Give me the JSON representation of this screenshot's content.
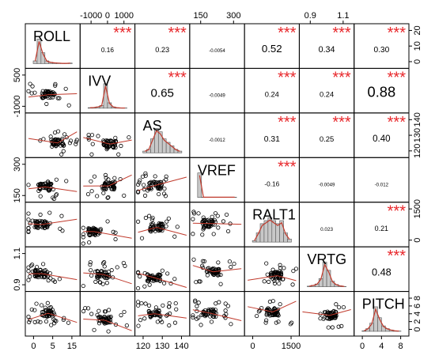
{
  "chart_data": {
    "type": "scatter",
    "variables": [
      "ROLL",
      "IVV",
      "AS",
      "VREF",
      "RALT1",
      "VRTG",
      "PITCH"
    ],
    "correlations": [
      {
        "row": 0,
        "col": 1,
        "value": "0.16",
        "stars": "***"
      },
      {
        "row": 0,
        "col": 2,
        "value": "0.23",
        "stars": "***"
      },
      {
        "row": 0,
        "col": 3,
        "value": "-0.0054",
        "stars": ""
      },
      {
        "row": 0,
        "col": 4,
        "value": "0.52",
        "stars": "***"
      },
      {
        "row": 0,
        "col": 5,
        "value": "0.34",
        "stars": "***"
      },
      {
        "row": 0,
        "col": 6,
        "value": "0.30",
        "stars": "***"
      },
      {
        "row": 1,
        "col": 2,
        "value": "0.65",
        "stars": "***"
      },
      {
        "row": 1,
        "col": 3,
        "value": "-0.0049",
        "stars": ""
      },
      {
        "row": 1,
        "col": 4,
        "value": "0.24",
        "stars": "***"
      },
      {
        "row": 1,
        "col": 5,
        "value": "0.24",
        "stars": "***"
      },
      {
        "row": 1,
        "col": 6,
        "value": "0.88",
        "stars": "***"
      },
      {
        "row": 2,
        "col": 3,
        "value": "-0.0012",
        "stars": ""
      },
      {
        "row": 2,
        "col": 4,
        "value": "0.31",
        "stars": "***"
      },
      {
        "row": 2,
        "col": 5,
        "value": "0.25",
        "stars": "***"
      },
      {
        "row": 2,
        "col": 6,
        "value": "0.40",
        "stars": "***"
      },
      {
        "row": 3,
        "col": 4,
        "value": "-0.16",
        "stars": "***"
      },
      {
        "row": 3,
        "col": 5,
        "value": "-0.0049",
        "stars": ""
      },
      {
        "row": 3,
        "col": 6,
        "value": "-0.012",
        "stars": ""
      },
      {
        "row": 4,
        "col": 5,
        "value": "0.023",
        "stars": ""
      },
      {
        "row": 4,
        "col": 6,
        "value": "0.21",
        "stars": "***"
      },
      {
        "row": 5,
        "col": 6,
        "value": "0.48",
        "stars": "***"
      }
    ],
    "axes": {
      "top": [
        {
          "col": 1,
          "ticks": [
            "-1000",
            "0",
            "1000"
          ]
        },
        {
          "col": 3,
          "ticks": [
            "150",
            "300"
          ]
        },
        {
          "col": 5,
          "ticks": [
            "0.9",
            "1.1"
          ]
        }
      ],
      "right": [
        {
          "row": 0,
          "ticks": [
            "0",
            "10",
            "20"
          ]
        },
        {
          "row": 2,
          "ticks": [
            "120",
            "130",
            "140"
          ]
        },
        {
          "row": 4,
          "ticks": [
            "0",
            "1500"
          ]
        },
        {
          "row": 6,
          "ticks": [
            "0",
            "2",
            "4",
            "6",
            "8"
          ]
        }
      ],
      "bottom": [
        {
          "col": 0,
          "ticks": [
            "0",
            "5",
            "15"
          ]
        },
        {
          "col": 2,
          "ticks": [
            "120",
            "130",
            "140"
          ]
        },
        {
          "col": 4,
          "ticks": [
            "0",
            "1500"
          ]
        },
        {
          "col": 6,
          "ticks": [
            "0",
            "4",
            "8"
          ]
        }
      ],
      "left": [
        {
          "row": 1,
          "ticks": [
            "-1000",
            "500"
          ]
        },
        {
          "row": 3,
          "ticks": [
            "150",
            "300"
          ]
        },
        {
          "row": 5,
          "ticks": [
            "0.9",
            "1.1"
          ]
        }
      ]
    },
    "colors": {
      "points": "#000000",
      "fit_line": "#c0392b",
      "stars": "#e8262a",
      "histogram": "#c8c8c8"
    }
  }
}
